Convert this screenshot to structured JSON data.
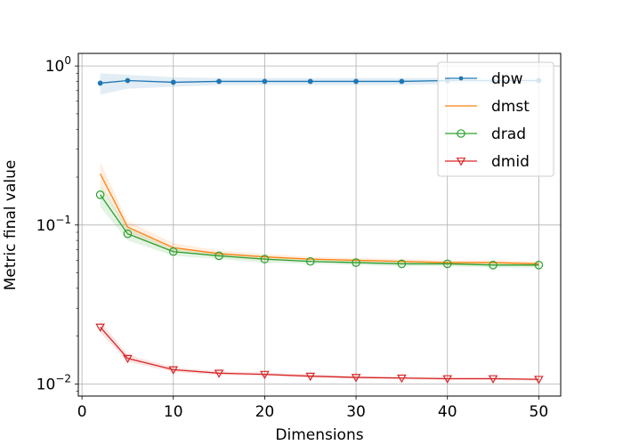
{
  "chart_data": {
    "type": "line",
    "title": "",
    "xlabel": "Dimensions",
    "ylabel": "Metric final value",
    "yscale": "log",
    "xlim": [
      -0.4,
      52.4
    ],
    "ylim": [
      0.0084,
      1.2
    ],
    "x_ticks": [
      0,
      10,
      20,
      30,
      40,
      50
    ],
    "x_tick_labels": [
      "0",
      "10",
      "20",
      "30",
      "40",
      "50"
    ],
    "y_ticks": [
      1,
      0.1,
      0.01
    ],
    "y_tick_labels": {
      "1": {
        "base": "10",
        "exp": "0"
      },
      "0.1": {
        "base": "10",
        "exp": "−1"
      },
      "0.01": {
        "base": "10",
        "exp": "−2"
      }
    },
    "grid": true,
    "legend_position": "top-right",
    "x": [
      2,
      5,
      10,
      15,
      20,
      25,
      30,
      35,
      40,
      45,
      50
    ],
    "series": [
      {
        "name": "dpw",
        "color": "#1f77b4",
        "marker": "dot",
        "values": [
          0.78,
          0.81,
          0.79,
          0.8,
          0.8,
          0.8,
          0.8,
          0.8,
          0.81,
          0.81,
          0.81
        ],
        "band": [
          [
            0.66,
            0.9
          ],
          [
            0.72,
            0.88
          ],
          [
            0.74,
            0.85
          ],
          [
            0.76,
            0.84
          ],
          [
            0.76,
            0.84
          ],
          [
            0.76,
            0.84
          ],
          [
            0.76,
            0.84
          ],
          [
            0.76,
            0.84
          ],
          [
            0.77,
            0.84
          ],
          [
            0.77,
            0.84
          ],
          [
            0.77,
            0.84
          ]
        ]
      },
      {
        "name": "dmst",
        "color": "#ff7f0e",
        "marker": "none",
        "values": [
          0.21,
          0.097,
          0.072,
          0.066,
          0.063,
          0.061,
          0.06,
          0.059,
          0.058,
          0.058,
          0.057
        ],
        "band": [
          [
            0.18,
            0.25
          ],
          [
            0.089,
            0.106
          ],
          [
            0.068,
            0.077
          ],
          [
            0.063,
            0.069
          ],
          [
            0.06,
            0.066
          ],
          [
            0.059,
            0.063
          ],
          [
            0.058,
            0.062
          ],
          [
            0.057,
            0.061
          ],
          [
            0.056,
            0.06
          ],
          [
            0.056,
            0.06
          ],
          [
            0.055,
            0.059
          ]
        ]
      },
      {
        "name": "drad",
        "color": "#2ca02c",
        "marker": "circle",
        "values": [
          0.155,
          0.088,
          0.068,
          0.064,
          0.061,
          0.059,
          0.058,
          0.057,
          0.057,
          0.056,
          0.056
        ],
        "band": [
          [
            0.13,
            0.18
          ],
          [
            0.08,
            0.096
          ],
          [
            0.064,
            0.072
          ],
          [
            0.061,
            0.067
          ],
          [
            0.058,
            0.064
          ],
          [
            0.057,
            0.061
          ],
          [
            0.056,
            0.06
          ],
          [
            0.055,
            0.059
          ],
          [
            0.055,
            0.059
          ],
          [
            0.054,
            0.058
          ],
          [
            0.054,
            0.058
          ]
        ]
      },
      {
        "name": "dmid",
        "color": "#d62728",
        "marker": "triangle-down",
        "values": [
          0.0228,
          0.0145,
          0.0123,
          0.0117,
          0.0115,
          0.0112,
          0.011,
          0.0109,
          0.0108,
          0.0108,
          0.0107
        ],
        "band": [
          [
            0.021,
            0.0248
          ],
          [
            0.0138,
            0.0153
          ],
          [
            0.0119,
            0.0127
          ],
          [
            0.0114,
            0.012
          ],
          [
            0.0112,
            0.0118
          ],
          [
            0.011,
            0.0115
          ],
          [
            0.0108,
            0.0112
          ],
          [
            0.0107,
            0.0111
          ],
          [
            0.0106,
            0.011
          ],
          [
            0.0106,
            0.011
          ],
          [
            0.0105,
            0.0109
          ]
        ]
      }
    ]
  }
}
